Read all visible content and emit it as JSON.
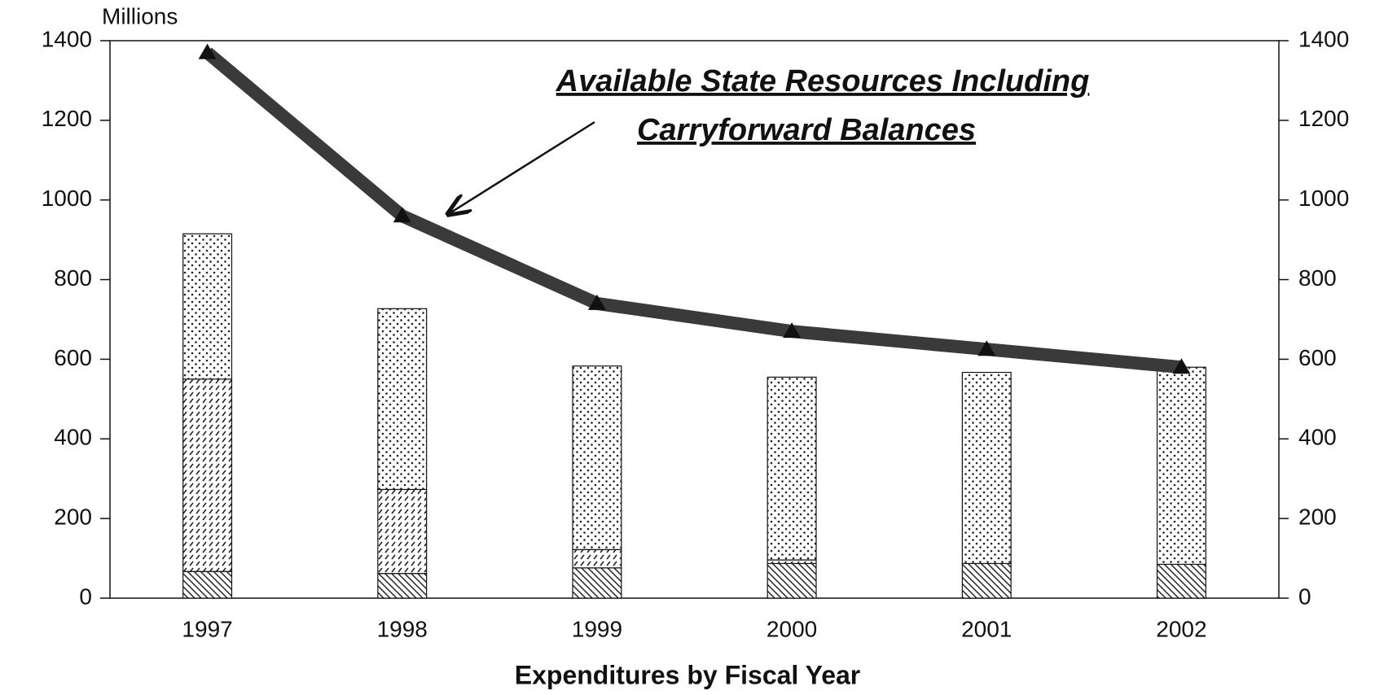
{
  "chart_data": {
    "type": "bar",
    "y_unit_label": "Millions",
    "x_label": "Expenditures by Fiscal Year",
    "annotation": [
      "Available State Resources Including",
      "Carryforward Balances"
    ],
    "categories": [
      "1997",
      "1998",
      "1999",
      "2000",
      "2001",
      "2002"
    ],
    "series": [
      {
        "pattern": "hatch",
        "color": "#111111",
        "values": [
          67,
          62,
          76,
          87,
          87,
          85
        ]
      },
      {
        "pattern": "dashes",
        "color": "#111111",
        "values": [
          483,
          211,
          46,
          9,
          0,
          0
        ]
      },
      {
        "pattern": "dots",
        "color": "#111111",
        "values": [
          365,
          454,
          461,
          459,
          480,
          495
        ]
      }
    ],
    "line": {
      "color": "#3a3a3a",
      "values": [
        1370,
        960,
        740,
        670,
        625,
        580
      ]
    },
    "ylim": [
      0,
      1400
    ],
    "yticks": [
      0,
      200,
      400,
      600,
      800,
      1000,
      1200,
      1400
    ],
    "y2lim": [
      0,
      1400
    ],
    "y2ticks": [
      0,
      200,
      400,
      600,
      800,
      1000,
      1200,
      1400
    ]
  }
}
